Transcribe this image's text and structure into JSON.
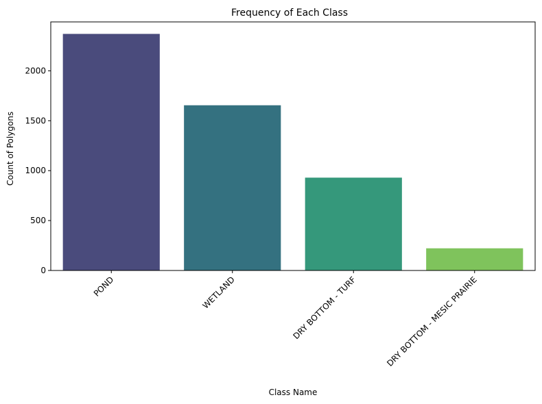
{
  "chart_data": {
    "type": "bar",
    "title": "Frequency of Each Class",
    "xlabel": "Class Name",
    "ylabel": "Count of Polygons",
    "categories": [
      "POND",
      "WETLAND",
      "DRY BOTTOM - TURF",
      "DRY BOTTOM - MESIC PRAIRIE"
    ],
    "values": [
      2370,
      1655,
      930,
      222
    ],
    "colors": [
      "#482677",
      "#2a788e",
      "#22a884",
      "#7ad151"
    ],
    "bar_colors_rendered": [
      "#4a4b7c",
      "#347180",
      "#35987b",
      "#7fc35c"
    ],
    "ylim": [
      0,
      2490
    ],
    "yticks": [
      0,
      500,
      1000,
      1500,
      2000
    ],
    "grid": false,
    "legend": "none"
  }
}
